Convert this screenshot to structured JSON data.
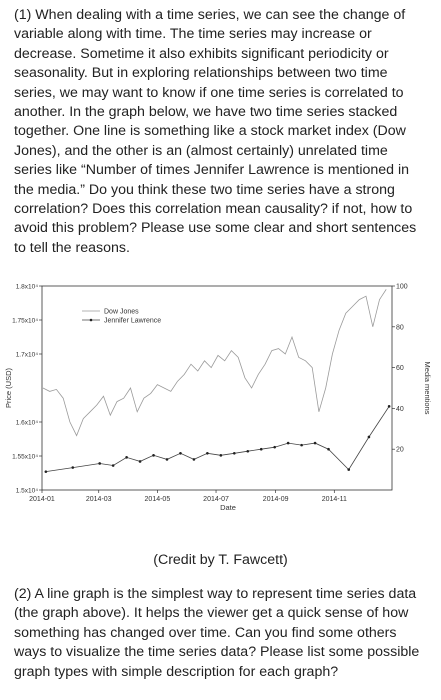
{
  "question1": {
    "text": "(1) When dealing with a time series, we can see the change of variable along with time. The time series may increase or decrease. Sometime it also exhibits significant periodicity or seasonality. But in exploring relationships between two time series, we may want to know if one time series is correlated to another. In the graph below, we have two time series stacked together. One line is something like a stock market index (Dow Jones), and the other is an (almost certainly) unrelated time series like “Number of times Jennifer Lawrence is mentioned in the media.” Do you think these two time series have a strong correlation? Does this correlation mean causality? if not, how to avoid this problem? Please use some clear and short sentences to tell the reasons."
  },
  "credit": "(Credit by T. Fawcett)",
  "question2": {
    "text": "(2) A line graph is the simplest way to represent time series data (the graph above). It helps the viewer get a quick sense of how something has changed over time. Can you find some others ways to visualize the time series data? Please list some possible graph types with simple description for each graph?"
  },
  "chart_data": {
    "type": "line",
    "xlabel": "Date",
    "ylabel_left": "Price (USD)",
    "ylabel_right": "Media mentions",
    "x_ticks": [
      "2014-01",
      "2014-03",
      "2014-05",
      "2014-07",
      "2014-09",
      "2014-11"
    ],
    "y_left_ticks": [
      "1.5x10⁴",
      "1.55x10⁴",
      "1.6x10⁴",
      "1.7x10⁴",
      "1.75x10⁴",
      "1.8x10⁴"
    ],
    "y_left_tick_values": [
      15000,
      15500,
      16000,
      17000,
      17500,
      18000
    ],
    "y_right_ticks": [
      "20",
      "40",
      "60",
      "80",
      "100"
    ],
    "y_right_tick_values": [
      20,
      40,
      60,
      80,
      100
    ],
    "legend": [
      "Dow Jones",
      "Jennifer Lawrence"
    ],
    "legend_position": "top-left",
    "series": [
      {
        "name": "Dow Jones",
        "x": [
          "2014-01-02",
          "2014-01-09",
          "2014-01-16",
          "2014-01-23",
          "2014-01-30",
          "2014-02-06",
          "2014-02-13",
          "2014-02-20",
          "2014-02-27",
          "2014-03-06",
          "2014-03-13",
          "2014-03-20",
          "2014-03-27",
          "2014-04-03",
          "2014-04-10",
          "2014-04-17",
          "2014-04-24",
          "2014-05-01",
          "2014-05-08",
          "2014-05-15",
          "2014-05-22",
          "2014-05-29",
          "2014-06-05",
          "2014-06-12",
          "2014-06-19",
          "2014-06-26",
          "2014-07-03",
          "2014-07-10",
          "2014-07-17",
          "2014-07-24",
          "2014-07-31",
          "2014-08-07",
          "2014-08-14",
          "2014-08-21",
          "2014-08-28",
          "2014-09-04",
          "2014-09-11",
          "2014-09-18",
          "2014-09-25",
          "2014-10-02",
          "2014-10-09",
          "2014-10-16",
          "2014-10-23",
          "2014-10-30",
          "2014-11-06",
          "2014-11-13",
          "2014-11-20",
          "2014-11-27",
          "2014-12-04",
          "2014-12-11",
          "2014-12-18",
          "2014-12-25"
        ],
        "y": [
          16500,
          16450,
          16480,
          16350,
          16000,
          15800,
          16050,
          16150,
          16250,
          16380,
          16100,
          16300,
          16350,
          16500,
          16150,
          16350,
          16420,
          16550,
          16500,
          16450,
          16600,
          16700,
          16850,
          16750,
          16900,
          16800,
          16980,
          16900,
          17050,
          16950,
          16650,
          16500,
          16700,
          16850,
          17050,
          17080,
          17000,
          17250,
          16950,
          16900,
          16800,
          16150,
          16500,
          17000,
          17350,
          17600,
          17700,
          17800,
          17850,
          17400,
          17800,
          17950
        ]
      },
      {
        "name": "Jennifer Lawrence",
        "x": [
          "2014-01-05",
          "2014-02-02",
          "2014-03-02",
          "2014-03-16",
          "2014-03-30",
          "2014-04-13",
          "2014-04-27",
          "2014-05-11",
          "2014-05-25",
          "2014-06-08",
          "2014-06-22",
          "2014-07-06",
          "2014-07-20",
          "2014-08-03",
          "2014-08-17",
          "2014-08-31",
          "2014-09-14",
          "2014-09-28",
          "2014-10-12",
          "2014-10-26",
          "2014-11-16",
          "2014-12-07",
          "2014-12-28"
        ],
        "y": [
          9,
          11,
          13,
          12,
          16,
          14,
          17,
          15,
          18,
          15,
          18,
          17,
          18,
          19,
          20,
          21,
          23,
          22,
          23,
          20,
          10,
          26,
          41
        ]
      }
    ]
  }
}
